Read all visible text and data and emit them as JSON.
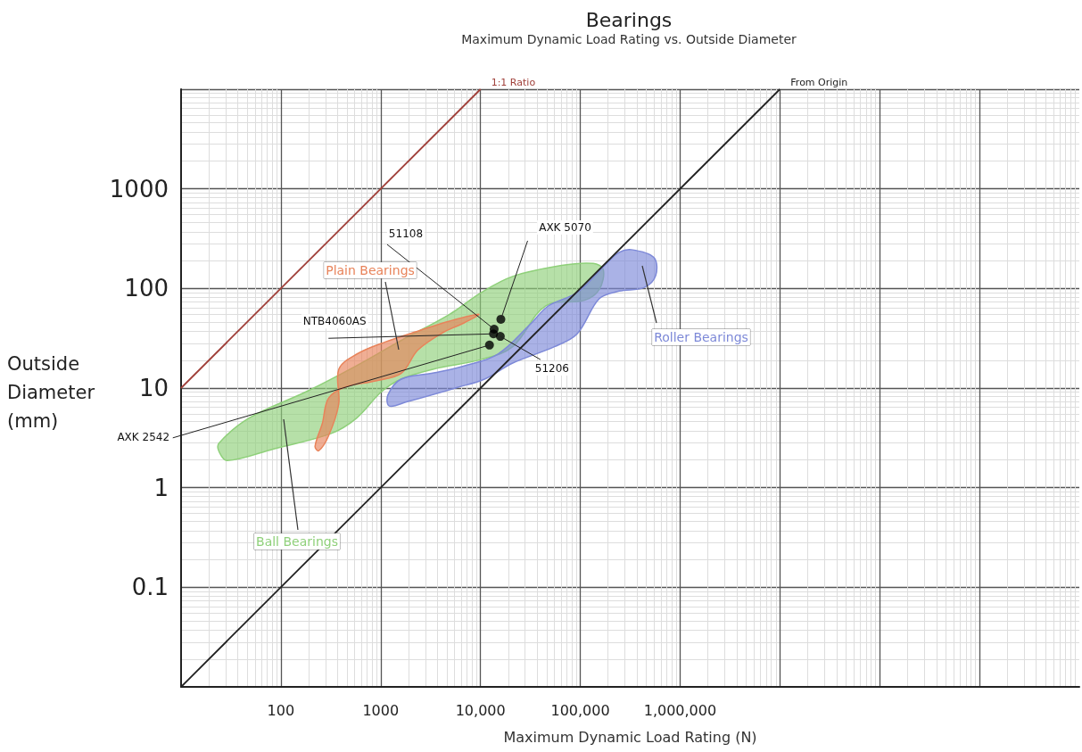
{
  "chart_data": {
    "type": "area",
    "title": "Bearings",
    "subtitle": "Maximum Dynamic Load Rating vs. Outside Diameter",
    "xlabel": "Maximum Dynamic Load Rating (N)",
    "ylabel": "Outside Diameter (mm)",
    "log": "xy",
    "grid": true,
    "legend": false,
    "xlim": [
      10,
      10000000000
    ],
    "ylim": [
      0.01,
      10000
    ],
    "xticks": [
      {
        "value": 100,
        "label": "100"
      },
      {
        "value": 1000,
        "label": "1000"
      },
      {
        "value": 10000,
        "label": "10,000"
      },
      {
        "value": 100000,
        "label": "100,000"
      },
      {
        "value": 1000000,
        "label": "1,000,000"
      },
      {
        "value": 10000000,
        "label": null
      },
      {
        "value": 100000000,
        "label": null
      },
      {
        "value": 1000000000,
        "label": null
      }
    ],
    "yticks": [
      0.1,
      1,
      10,
      100,
      1000,
      {
        "value": 10000,
        "label": null
      }
    ],
    "series": [
      {
        "name": "Ball Bearings",
        "color": "#8fd07a",
        "x": [
          24,
          48,
          180,
          575,
          1600,
          4900,
          10200,
          21000,
          65000,
          135000,
          170000,
          155000,
          110000,
          45000,
          21000,
          10200,
          3400,
          1600,
          1020,
          575,
          320,
          85,
          29,
          24
        ],
        "values": [
          2.8,
          5,
          9.2,
          16.8,
          30,
          55,
          91,
          132,
          170,
          178,
          155,
          98,
          76,
          67,
          26,
          19.4,
          15.5,
          12.3,
          9.2,
          5,
          3.5,
          2.45,
          1.87,
          2.3
        ]
      },
      {
        "name": "Plain Bearings",
        "color": "#e8835a",
        "x": [
          9600,
          7100,
          4000,
          2350,
          1600,
          890,
          440,
          300,
          260,
          220,
          240,
          300,
          380,
          380,
          580,
          1110,
          2500,
          4900
        ],
        "values": [
          55,
          46,
          35,
          24,
          14,
          11.8,
          10.2,
          7.9,
          4.4,
          2.6,
          2.35,
          3.3,
          6.9,
          15.4,
          22,
          29,
          38,
          47
        ]
      },
      {
        "name": "Roller Bearings",
        "color": "#7d89d8",
        "x": [
          325000,
          545000,
          570000,
          435000,
          245000,
          155000,
          93000,
          55000,
          21000,
          11000,
          6000,
          1850,
          1220,
          1180,
          1600,
          3400,
          7100,
          15000,
          31000,
          48000,
          93000,
          183000,
          245000
        ],
        "values": [
          245,
          205,
          135,
          102,
          94,
          79,
          35,
          26,
          17.8,
          12.3,
          10.2,
          7.3,
          6.6,
          8.5,
          12.3,
          14.2,
          16.8,
          22,
          43,
          67,
          91,
          178,
          230
        ]
      },
      {
        "name": "1:1 Ratio",
        "type": "line",
        "color": "#a0403a",
        "x": [
          10,
          10000
        ],
        "values": [
          10,
          10000
        ]
      },
      {
        "name": "From Origin",
        "type": "line",
        "color": "#222222",
        "x": [
          10,
          10000000
        ],
        "values": [
          0.01,
          10000
        ]
      },
      {
        "type": "scatter",
        "color": "#000000",
        "marker": "circle",
        "x": [
          16000,
          13700,
          13500,
          15800,
          12300
        ],
        "values": [
          49,
          39,
          35,
          33,
          27
        ]
      }
    ],
    "annotations": [
      {
        "text": "AXK 5070",
        "x": 16000,
        "y": 49
      },
      {
        "text": "51108",
        "x": 13700,
        "y": 39
      },
      {
        "text": "NTB4060AS",
        "x": 13500,
        "y": 35
      },
      {
        "text": "51206",
        "x": 15800,
        "y": 33
      },
      {
        "text": "AXK 2542",
        "x": 12300,
        "y": 27
      }
    ]
  }
}
